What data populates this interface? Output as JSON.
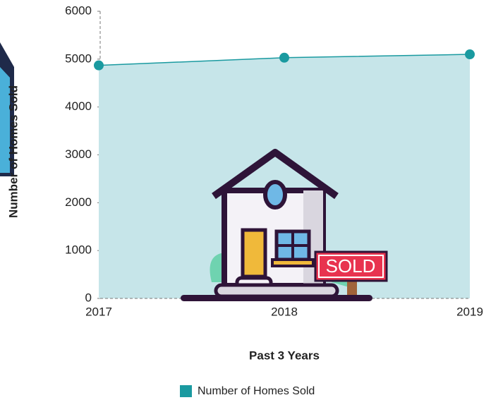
{
  "chart_data": {
    "type": "area",
    "y_label": "Number of Homes Sold",
    "x_label": "Past 3 Years",
    "categories": [
      "2017",
      "2018",
      "2019"
    ],
    "series": [
      {
        "name": "Number of Homes Sold",
        "color": "#1a9aa0",
        "fill": "#c6e5e9",
        "values": [
          4870,
          5030,
          5100
        ]
      }
    ],
    "ylim": [
      0,
      6000
    ],
    "yticks": [
      0,
      1000,
      2000,
      3000,
      4000,
      5000,
      6000
    ],
    "legend": "bottom"
  },
  "sign_text": "SOLD"
}
